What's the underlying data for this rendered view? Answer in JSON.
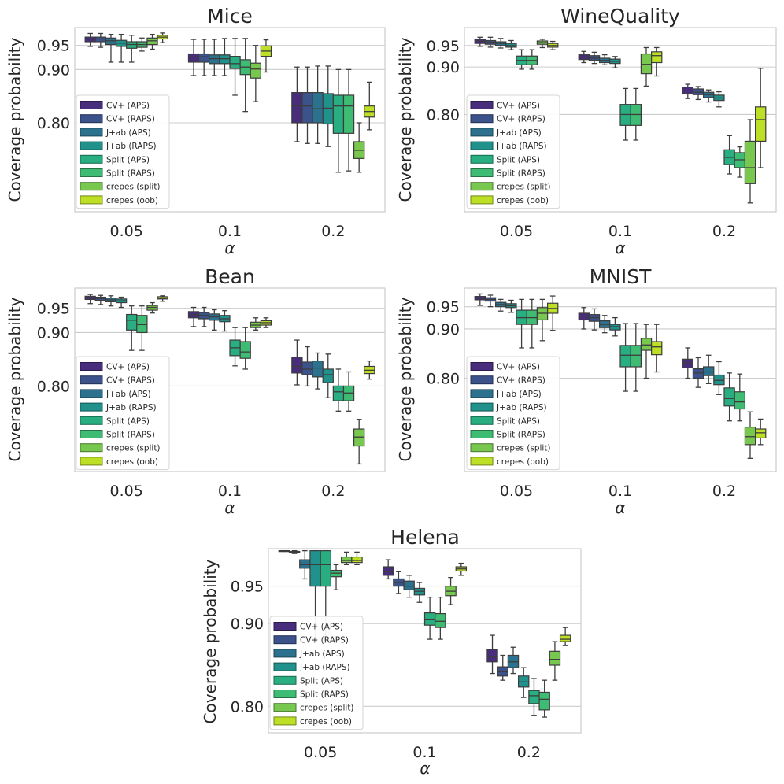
{
  "figure": {
    "y_axis_label": "Coverage probability",
    "x_axis_label": "α"
  },
  "chart_data": [
    {
      "type": "box",
      "title": "Mice",
      "categories": [
        "0.05",
        "0.1",
        "0.2"
      ],
      "xlabel": "α",
      "ylabel": "Coverage probability",
      "yticks": [
        0.8,
        0.9,
        0.95
      ],
      "ytick_labels": [
        "0.80",
        "0.90",
        "0.95"
      ],
      "ylim": [
        0.665,
        0.989
      ],
      "legend": [
        "CV+ (APS)",
        "CV+ (RAPS)",
        "J+ab (APS)",
        "J+ab (RAPS)",
        "Split (APS)",
        "Split (RAPS)",
        "crepes (split)",
        "crepes (oob)"
      ],
      "colors": [
        "#472d7b",
        "#3b528b",
        "#2c728e",
        "#21918c",
        "#28ae80",
        "#3fbc73",
        "#78c74e",
        "#bddf26"
      ],
      "legend_position": "center-left",
      "groups": [
        [
          [
            0.948,
            0.958,
            0.964,
            0.968,
            0.976
          ],
          [
            0.946,
            0.958,
            0.964,
            0.968,
            0.976
          ],
          [
            0.915,
            0.952,
            0.96,
            0.966,
            0.974
          ],
          [
            0.915,
            0.948,
            0.955,
            0.961,
            0.974
          ],
          [
            0.915,
            0.944,
            0.952,
            0.958,
            0.972
          ],
          [
            0.938,
            0.946,
            0.952,
            0.958,
            0.966
          ],
          [
            0.942,
            0.952,
            0.96,
            0.966,
            0.974
          ],
          [
            0.956,
            0.964,
            0.968,
            0.972,
            0.977
          ]
        ],
        [
          [
            0.888,
            0.915,
            0.926,
            0.932,
            0.963
          ],
          [
            0.888,
            0.915,
            0.926,
            0.932,
            0.963
          ],
          [
            0.888,
            0.912,
            0.922,
            0.93,
            0.963
          ],
          [
            0.888,
            0.912,
            0.922,
            0.93,
            0.965
          ],
          [
            0.85,
            0.902,
            0.912,
            0.927,
            0.965
          ],
          [
            0.82,
            0.89,
            0.905,
            0.92,
            0.965
          ],
          [
            0.838,
            0.883,
            0.901,
            0.913,
            0.95
          ],
          [
            0.895,
            0.927,
            0.938,
            0.949,
            0.962
          ]
        ],
        [
          [
            0.768,
            0.8,
            0.83,
            0.855,
            0.905
          ],
          [
            0.765,
            0.8,
            0.83,
            0.855,
            0.905
          ],
          [
            0.765,
            0.8,
            0.825,
            0.855,
            0.907
          ],
          [
            0.76,
            0.798,
            0.826,
            0.853,
            0.907
          ],
          [
            0.72,
            0.782,
            0.83,
            0.85,
            0.9
          ],
          [
            0.722,
            0.782,
            0.83,
            0.85,
            0.9
          ],
          [
            0.72,
            0.741,
            0.754,
            0.768,
            0.8
          ],
          [
            0.788,
            0.81,
            0.82,
            0.83,
            0.875
          ]
        ]
      ]
    },
    {
      "type": "box",
      "title": "WineQuality",
      "categories": [
        "0.05",
        "0.1",
        "0.2"
      ],
      "xlabel": "α",
      "ylabel": "Coverage probability",
      "yticks": [
        0.8,
        0.9,
        0.95
      ],
      "ytick_labels": [
        "0.80",
        "0.90",
        "0.95"
      ],
      "ylim": [
        0.64,
        0.994
      ],
      "legend": [
        "CV+ (APS)",
        "CV+ (RAPS)",
        "J+ab (APS)",
        "J+ab (RAPS)",
        "Split (APS)",
        "Split (RAPS)",
        "crepes (split)",
        "crepes (oob)"
      ],
      "colors": [
        "#472d7b",
        "#3b528b",
        "#2c728e",
        "#21918c",
        "#28ae80",
        "#3fbc73",
        "#78c74e",
        "#bddf26"
      ],
      "legend_position": "center-left",
      "groups": [
        [
          [
            0.948,
            0.955,
            0.961,
            0.965,
            0.97
          ],
          [
            0.946,
            0.953,
            0.958,
            0.962,
            0.97
          ],
          [
            0.944,
            0.95,
            0.955,
            0.959,
            0.967
          ],
          [
            0.94,
            0.946,
            0.95,
            0.955,
            0.962
          ],
          [
            0.895,
            0.905,
            0.915,
            0.925,
            0.94
          ],
          [
            0.895,
            0.905,
            0.915,
            0.925,
            0.94
          ],
          [
            0.945,
            0.953,
            0.957,
            0.961,
            0.965
          ],
          [
            0.94,
            0.946,
            0.95,
            0.955,
            0.96
          ]
        ],
        [
          [
            0.91,
            0.917,
            0.922,
            0.928,
            0.936
          ],
          [
            0.908,
            0.915,
            0.92,
            0.926,
            0.934
          ],
          [
            0.905,
            0.91,
            0.915,
            0.92,
            0.928
          ],
          [
            0.898,
            0.908,
            0.913,
            0.918,
            0.924
          ],
          [
            0.752,
            0.779,
            0.8,
            0.82,
            0.853
          ],
          [
            0.752,
            0.779,
            0.8,
            0.82,
            0.853
          ],
          [
            0.858,
            0.885,
            0.906,
            0.93,
            0.945
          ],
          [
            0.88,
            0.91,
            0.926,
            0.935,
            0.945
          ]
        ],
        [
          [
            0.832,
            0.842,
            0.848,
            0.856,
            0.862
          ],
          [
            0.83,
            0.84,
            0.845,
            0.852,
            0.857
          ],
          [
            0.825,
            0.834,
            0.84,
            0.845,
            0.85
          ],
          [
            0.815,
            0.828,
            0.833,
            0.839,
            0.846
          ],
          [
            0.695,
            0.71,
            0.722,
            0.735,
            0.76
          ],
          [
            0.69,
            0.705,
            0.718,
            0.73,
            0.74
          ],
          [
            0.652,
            0.68,
            0.705,
            0.75,
            0.79
          ],
          [
            0.705,
            0.75,
            0.79,
            0.815,
            0.897
          ]
        ]
      ]
    },
    {
      "type": "box",
      "title": "Bean",
      "categories": [
        "0.05",
        "0.1",
        "0.2"
      ],
      "xlabel": "α",
      "ylabel": "Coverage probability",
      "yticks": [
        0.8,
        0.9,
        0.95
      ],
      "ytick_labels": [
        "0.80",
        "0.90",
        "0.95"
      ],
      "ylim": [
        0.67,
        0.994
      ],
      "legend": [
        "CV+ (APS)",
        "CV+ (RAPS)",
        "J+ab (APS)",
        "J+ab (RAPS)",
        "Split (APS)",
        "Split (RAPS)",
        "crepes (split)",
        "crepes (oob)"
      ],
      "colors": [
        "#472d7b",
        "#3b528b",
        "#2c728e",
        "#21918c",
        "#28ae80",
        "#3fbc73",
        "#78c74e",
        "#bddf26"
      ],
      "legend_position": "center-left",
      "groups": [
        [
          [
            0.96,
            0.969,
            0.973,
            0.976,
            0.98
          ],
          [
            0.958,
            0.967,
            0.971,
            0.974,
            0.978
          ],
          [
            0.955,
            0.964,
            0.968,
            0.972,
            0.977
          ],
          [
            0.952,
            0.962,
            0.966,
            0.97,
            0.974
          ],
          [
            0.865,
            0.905,
            0.925,
            0.937,
            0.955
          ],
          [
            0.865,
            0.9,
            0.916,
            0.935,
            0.955
          ],
          [
            0.94,
            0.946,
            0.952,
            0.956,
            0.962
          ],
          [
            0.965,
            0.97,
            0.972,
            0.975,
            0.977
          ]
        ],
        [
          [
            0.912,
            0.93,
            0.937,
            0.943,
            0.952
          ],
          [
            0.912,
            0.928,
            0.935,
            0.941,
            0.952
          ],
          [
            0.905,
            0.925,
            0.932,
            0.938,
            0.947
          ],
          [
            0.903,
            0.922,
            0.928,
            0.935,
            0.945
          ],
          [
            0.836,
            0.855,
            0.87,
            0.885,
            0.91
          ],
          [
            0.83,
            0.85,
            0.862,
            0.882,
            0.91
          ],
          [
            0.905,
            0.91,
            0.915,
            0.921,
            0.93
          ],
          [
            0.91,
            0.915,
            0.92,
            0.924,
            0.93
          ]
        ],
        [
          [
            0.802,
            0.823,
            0.835,
            0.852,
            0.885
          ],
          [
            0.8,
            0.82,
            0.83,
            0.843,
            0.872
          ],
          [
            0.795,
            0.816,
            0.832,
            0.845,
            0.86
          ],
          [
            0.78,
            0.806,
            0.82,
            0.83,
            0.858
          ],
          [
            0.758,
            0.775,
            0.79,
            0.8,
            0.83
          ],
          [
            0.758,
            0.775,
            0.788,
            0.8,
            0.825
          ],
          [
            0.68,
            0.705,
            0.718,
            0.73,
            0.745
          ],
          [
            0.812,
            0.822,
            0.828,
            0.835,
            0.845
          ]
        ]
      ]
    },
    {
      "type": "box",
      "title": "MNIST",
      "categories": [
        "0.05",
        "0.1",
        "0.2"
      ],
      "xlabel": "α",
      "ylabel": "Coverage probability",
      "yticks": [
        0.8,
        0.9,
        0.95
      ],
      "ytick_labels": [
        "0.80",
        "0.90",
        "0.95"
      ],
      "ylim": [
        0.65,
        0.994
      ],
      "legend": [
        "CV+ (APS)",
        "CV+ (RAPS)",
        "J+ab (APS)",
        "J+ab (RAPS)",
        "Split (APS)",
        "Split (RAPS)",
        "crepes (split)",
        "crepes (oob)"
      ],
      "colors": [
        "#472d7b",
        "#3b528b",
        "#2c728e",
        "#21918c",
        "#28ae80",
        "#3fbc73",
        "#78c74e",
        "#bddf26"
      ],
      "legend_position": "center-left",
      "groups": [
        [
          [
            0.953,
            0.966,
            0.97,
            0.974,
            0.98
          ],
          [
            0.95,
            0.963,
            0.967,
            0.971,
            0.977
          ],
          [
            0.94,
            0.95,
            0.955,
            0.96,
            0.967
          ],
          [
            0.937,
            0.948,
            0.952,
            0.957,
            0.965
          ],
          [
            0.86,
            0.91,
            0.925,
            0.942,
            0.967
          ],
          [
            0.86,
            0.91,
            0.925,
            0.942,
            0.967
          ],
          [
            0.875,
            0.92,
            0.935,
            0.948,
            0.967
          ],
          [
            0.897,
            0.935,
            0.946,
            0.958,
            0.975
          ]
        ],
        [
          [
            0.9,
            0.92,
            0.928,
            0.935,
            0.948
          ],
          [
            0.898,
            0.917,
            0.925,
            0.932,
            0.945
          ],
          [
            0.892,
            0.903,
            0.91,
            0.918,
            0.93
          ],
          [
            0.885,
            0.898,
            0.905,
            0.91,
            0.925
          ],
          [
            0.776,
            0.822,
            0.845,
            0.865,
            0.912
          ],
          [
            0.776,
            0.822,
            0.845,
            0.865,
            0.912
          ],
          [
            0.8,
            0.855,
            0.866,
            0.88,
            0.91
          ],
          [
            0.812,
            0.846,
            0.862,
            0.873,
            0.91
          ]
        ],
        [
          [
            0.8,
            0.82,
            0.83,
            0.837,
            0.86
          ],
          [
            0.783,
            0.8,
            0.81,
            0.818,
            0.84
          ],
          [
            0.79,
            0.805,
            0.812,
            0.822,
            0.845
          ],
          [
            0.77,
            0.788,
            0.796,
            0.806,
            0.832
          ],
          [
            0.725,
            0.75,
            0.763,
            0.782,
            0.81
          ],
          [
            0.725,
            0.745,
            0.757,
            0.775,
            0.808
          ],
          [
            0.668,
            0.688,
            0.7,
            0.715,
            0.74
          ],
          [
            0.688,
            0.698,
            0.706,
            0.712,
            0.728
          ]
        ]
      ]
    },
    {
      "type": "box",
      "title": "Helena",
      "categories": [
        "0.05",
        "0.1",
        "0.2"
      ],
      "xlabel": "α",
      "ylabel": "Coverage probability",
      "yticks": [
        0.8,
        0.9,
        0.95
      ],
      "ytick_labels": [
        "0.80",
        "0.90",
        "0.95"
      ],
      "ylim": [
        0.771,
        1.003
      ],
      "legend": [
        "CV+ (APS)",
        "CV+ (RAPS)",
        "J+ab (APS)",
        "J+ab (RAPS)",
        "Split (APS)",
        "Split (RAPS)",
        "crepes (split)",
        "crepes (oob)"
      ],
      "colors": [
        "#472d7b",
        "#3b528b",
        "#2c728e",
        "#21918c",
        "#28ae80",
        "#3fbc73",
        "#78c74e",
        "#bddf26"
      ],
      "legend_position": "center-left",
      "groups": [
        [
          [
            0.999,
            0.999,
            1.0,
            1.0,
            1.0
          ],
          [
            0.996,
            0.997,
            0.998,
            0.999,
            1.0
          ],
          [
            0.96,
            0.975,
            0.98,
            0.987,
            1.0
          ],
          [
            0.88,
            0.95,
            0.98,
            1.0,
            1.0
          ],
          [
            0.88,
            0.95,
            0.98,
            1.0,
            1.0
          ],
          [
            0.945,
            0.963,
            0.968,
            0.972,
            0.98
          ],
          [
            0.98,
            0.983,
            0.986,
            0.991,
            0.998
          ],
          [
            0.98,
            0.983,
            0.986,
            0.991,
            0.998
          ]
        ],
        [
          [
            0.96,
            0.965,
            0.97,
            0.977,
            0.987
          ],
          [
            0.94,
            0.95,
            0.955,
            0.96,
            0.97
          ],
          [
            0.935,
            0.945,
            0.95,
            0.957,
            0.965
          ],
          [
            0.928,
            0.938,
            0.943,
            0.947,
            0.955
          ],
          [
            0.88,
            0.898,
            0.905,
            0.914,
            0.935
          ],
          [
            0.88,
            0.895,
            0.903,
            0.913,
            0.935
          ],
          [
            0.925,
            0.937,
            0.943,
            0.95,
            0.962
          ],
          [
            0.965,
            0.971,
            0.974,
            0.977,
            0.982
          ]
        ],
        [
          [
            0.838,
            0.852,
            0.858,
            0.867,
            0.885
          ],
          [
            0.83,
            0.835,
            0.84,
            0.846,
            0.86
          ],
          [
            0.838,
            0.845,
            0.852,
            0.86,
            0.87
          ],
          [
            0.81,
            0.822,
            0.828,
            0.835,
            0.845
          ],
          [
            0.79,
            0.803,
            0.812,
            0.818,
            0.832
          ],
          [
            0.788,
            0.796,
            0.808,
            0.816,
            0.83
          ],
          [
            0.83,
            0.848,
            0.855,
            0.865,
            0.877
          ],
          [
            0.872,
            0.877,
            0.88,
            0.885,
            0.895
          ]
        ]
      ]
    }
  ]
}
